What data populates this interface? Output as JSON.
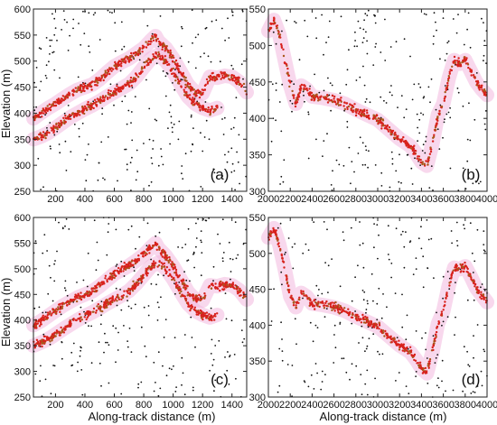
{
  "figure": {
    "x_axis_label": "Along-track distance (m)",
    "y_axis_label": "Elevation (m)"
  },
  "colors": {
    "noise": "#111111",
    "signal": "#d8211c",
    "signal_alt": "#a8581c",
    "halo": "#f3b8df"
  },
  "chart_data": [
    {
      "id": "a",
      "label": "(a)",
      "type": "scatter",
      "xlim": [
        50,
        1500
      ],
      "ylim": [
        250,
        600
      ],
      "xticks": [
        200,
        400,
        600,
        800,
        1000,
        1200,
        1400
      ],
      "yticks": [
        250,
        300,
        350,
        400,
        450,
        500,
        550,
        600
      ],
      "ylabel": "Elevation (m)",
      "xlabel": "",
      "series": [
        {
          "role": "noise",
          "count": 260,
          "color": "#111111"
        },
        {
          "role": "signal-upper",
          "color": "#d8211c",
          "x": [
            50,
            100,
            150,
            200,
            250,
            300,
            350,
            400,
            450,
            500,
            550,
            600,
            650,
            700,
            750,
            800,
            850,
            880,
            900,
            950,
            1000,
            1050,
            1100,
            1150,
            1200,
            1250,
            1300,
            1350,
            1400,
            1450,
            1500
          ],
          "y": [
            390,
            400,
            410,
            418,
            428,
            437,
            445,
            450,
            455,
            465,
            478,
            490,
            498,
            505,
            515,
            525,
            540,
            548,
            538,
            525,
            505,
            480,
            455,
            440,
            438,
            470,
            468,
            472,
            470,
            460,
            440
          ]
        },
        {
          "role": "signal-lower",
          "color": "#d8211c",
          "x": [
            50,
            100,
            150,
            200,
            250,
            300,
            350,
            400,
            450,
            500,
            550,
            600,
            650,
            700,
            750,
            800,
            850,
            900,
            950,
            1000,
            1050,
            1100,
            1150,
            1200,
            1250,
            1300
          ],
          "y": [
            350,
            355,
            362,
            372,
            382,
            392,
            400,
            408,
            415,
            423,
            432,
            440,
            448,
            456,
            470,
            488,
            505,
            512,
            500,
            480,
            455,
            432,
            418,
            410,
            405,
            410
          ]
        }
      ]
    },
    {
      "id": "b",
      "label": "(b)",
      "type": "scatter",
      "xlim": [
        2000,
        4000
      ],
      "ylim": [
        300,
        550
      ],
      "xticks": [
        2000,
        2200,
        2400,
        2600,
        2800,
        3000,
        3200,
        3400,
        3600,
        3800,
        4000
      ],
      "yticks": [
        300,
        350,
        400,
        450,
        500,
        550
      ],
      "ylabel": "",
      "xlabel": "",
      "series": [
        {
          "role": "noise",
          "count": 240,
          "color": "#111111"
        },
        {
          "role": "signal",
          "color": "#d8211c",
          "x": [
            2000,
            2050,
            2100,
            2150,
            2200,
            2250,
            2300,
            2350,
            2400,
            2500,
            2600,
            2700,
            2800,
            2900,
            3000,
            3100,
            3200,
            3300,
            3350,
            3400,
            3450,
            3500,
            3550,
            3600,
            3650,
            3700,
            3750,
            3800,
            3850,
            3900,
            3950,
            4000
          ],
          "y": [
            520,
            535,
            515,
            480,
            445,
            420,
            445,
            440,
            430,
            428,
            425,
            420,
            412,
            405,
            398,
            385,
            372,
            362,
            352,
            340,
            335,
            365,
            405,
            420,
            455,
            480,
            475,
            480,
            465,
            450,
            440,
            432
          ]
        }
      ]
    },
    {
      "id": "c",
      "label": "(c)",
      "type": "scatter",
      "xlim": [
        50,
        1500
      ],
      "ylim": [
        250,
        600
      ],
      "xticks": [
        200,
        400,
        600,
        800,
        1000,
        1200,
        1400
      ],
      "yticks": [
        250,
        300,
        350,
        400,
        450,
        500,
        550,
        600
      ],
      "ylabel": "Elevation (m)",
      "xlabel": "Along-track distance (m)",
      "series": [
        {
          "role": "noise",
          "count": 260,
          "color": "#111111"
        },
        {
          "role": "signal-upper",
          "color": "#d8211c",
          "x": [
            50,
            100,
            150,
            200,
            250,
            300,
            350,
            400,
            450,
            500,
            550,
            600,
            650,
            700,
            750,
            800,
            850,
            880,
            900,
            950,
            1000,
            1050,
            1100,
            1150,
            1200,
            1250,
            1300,
            1350,
            1400,
            1450,
            1500
          ],
          "y": [
            390,
            398,
            408,
            418,
            428,
            436,
            444,
            450,
            456,
            466,
            478,
            490,
            498,
            506,
            516,
            527,
            542,
            550,
            540,
            525,
            505,
            480,
            455,
            440,
            438,
            468,
            466,
            470,
            468,
            458,
            440
          ]
        },
        {
          "role": "signal-lower",
          "color": "#d8211c",
          "x": [
            50,
            100,
            150,
            200,
            250,
            300,
            350,
            400,
            450,
            500,
            550,
            600,
            650,
            700,
            750,
            800,
            850,
            900,
            950,
            1000,
            1050,
            1100,
            1150,
            1200,
            1250,
            1300
          ],
          "y": [
            350,
            356,
            363,
            372,
            382,
            391,
            400,
            408,
            415,
            423,
            432,
            440,
            448,
            457,
            471,
            488,
            505,
            512,
            500,
            480,
            455,
            432,
            418,
            410,
            405,
            410
          ]
        }
      ]
    },
    {
      "id": "d",
      "label": "(d)",
      "type": "scatter",
      "xlim": [
        2000,
        4000
      ],
      "ylim": [
        300,
        550
      ],
      "xticks": [
        2000,
        2200,
        2400,
        2600,
        2800,
        3000,
        3200,
        3400,
        3600,
        3800,
        4000
      ],
      "yticks": [
        300,
        350,
        400,
        450,
        500,
        550
      ],
      "ylabel": "",
      "xlabel": "Along-track distance (m)",
      "series": [
        {
          "role": "noise",
          "count": 240,
          "color": "#111111"
        },
        {
          "role": "signal",
          "color": "#d8211c",
          "x": [
            2000,
            2050,
            2100,
            2150,
            2200,
            2250,
            2300,
            2350,
            2400,
            2500,
            2600,
            2700,
            2800,
            2900,
            3000,
            3100,
            3200,
            3300,
            3350,
            3400,
            3450,
            3500,
            3550,
            3600,
            3650,
            3700,
            3750,
            3800,
            3850,
            3900,
            3950,
            4000
          ],
          "y": [
            522,
            535,
            512,
            478,
            440,
            425,
            445,
            440,
            430,
            428,
            425,
            420,
            412,
            405,
            398,
            385,
            372,
            362,
            352,
            340,
            333,
            362,
            402,
            420,
            455,
            480,
            478,
            482,
            468,
            452,
            442,
            432
          ]
        }
      ]
    }
  ]
}
